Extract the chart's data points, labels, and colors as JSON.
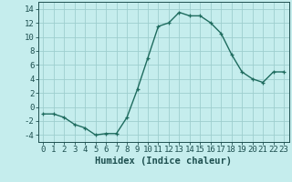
{
  "x": [
    0,
    1,
    2,
    3,
    4,
    5,
    6,
    7,
    8,
    9,
    10,
    11,
    12,
    13,
    14,
    15,
    16,
    17,
    18,
    19,
    20,
    21,
    22,
    23
  ],
  "y": [
    -1,
    -1,
    -1.5,
    -2.5,
    -3,
    -4,
    -3.8,
    -3.8,
    -1.5,
    2.5,
    7,
    11.5,
    12,
    13.5,
    13,
    13,
    12,
    10.5,
    7.5,
    5,
    4,
    3.5,
    5,
    5
  ],
  "line_color": "#1e6b5e",
  "marker": "+",
  "bg_color": "#c5eded",
  "grid_color": "#9ecece",
  "xlabel": "Humidex (Indice chaleur)",
  "ylim": [
    -5,
    15
  ],
  "xlim": [
    -0.5,
    23.5
  ],
  "yticks": [
    -4,
    -2,
    0,
    2,
    4,
    6,
    8,
    10,
    12,
    14
  ],
  "xticks": [
    0,
    1,
    2,
    3,
    4,
    5,
    6,
    7,
    8,
    9,
    10,
    11,
    12,
    13,
    14,
    15,
    16,
    17,
    18,
    19,
    20,
    21,
    22,
    23
  ],
  "tick_color": "#1e5050",
  "label_fontsize": 6.5,
  "xlabel_fontsize": 7.5,
  "linewidth": 1.0
}
